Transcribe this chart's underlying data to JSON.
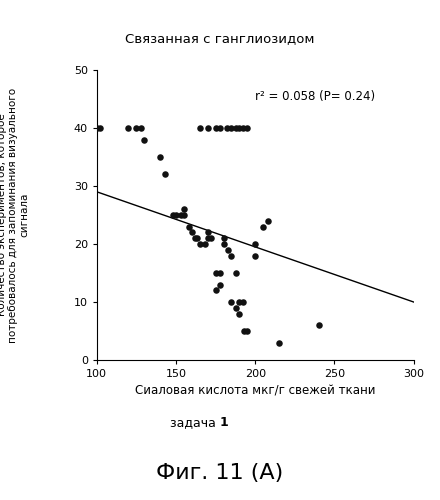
{
  "title": "Связанная с ганглиозидом",
  "xlabel": "Сиаловая кислота мкг/г свежей ткани",
  "ylabel": "Количество экспериментов, которое\nпотребовалось для запоминания визуального\nсигнала",
  "subtitle": "задача  1",
  "fig_label": "Фиг. 11 (А)",
  "annotation": "r² = 0.058 (P= 0.24)",
  "xlim": [
    100,
    300
  ],
  "ylim": [
    0,
    50
  ],
  "xticks": [
    100,
    150,
    200,
    250,
    300
  ],
  "yticks": [
    0,
    10,
    20,
    30,
    40,
    50
  ],
  "scatter_x": [
    100,
    102,
    120,
    125,
    128,
    130,
    140,
    143,
    148,
    150,
    153,
    155,
    155,
    158,
    160,
    162,
    163,
    165,
    168,
    170,
    170,
    172,
    175,
    175,
    178,
    178,
    180,
    180,
    183,
    185,
    185,
    188,
    188,
    190,
    190,
    192,
    193,
    195,
    165,
    170,
    175,
    178,
    182,
    185,
    188,
    190,
    192,
    195,
    200,
    200,
    205,
    208,
    215,
    240
  ],
  "scatter_y": [
    40,
    40,
    40,
    40,
    40,
    38,
    35,
    32,
    25,
    25,
    25,
    25,
    26,
    23,
    22,
    21,
    21,
    20,
    20,
    22,
    21,
    21,
    15,
    12,
    15,
    13,
    20,
    21,
    19,
    18,
    10,
    15,
    9,
    10,
    8,
    10,
    5,
    5,
    40,
    40,
    40,
    40,
    40,
    40,
    40,
    40,
    40,
    40,
    18,
    20,
    23,
    24,
    3,
    6
  ],
  "line_x": [
    100,
    300
  ],
  "line_y": [
    29,
    10
  ],
  "dot_color": "#111111",
  "line_color": "#000000",
  "background_color": "#ffffff"
}
